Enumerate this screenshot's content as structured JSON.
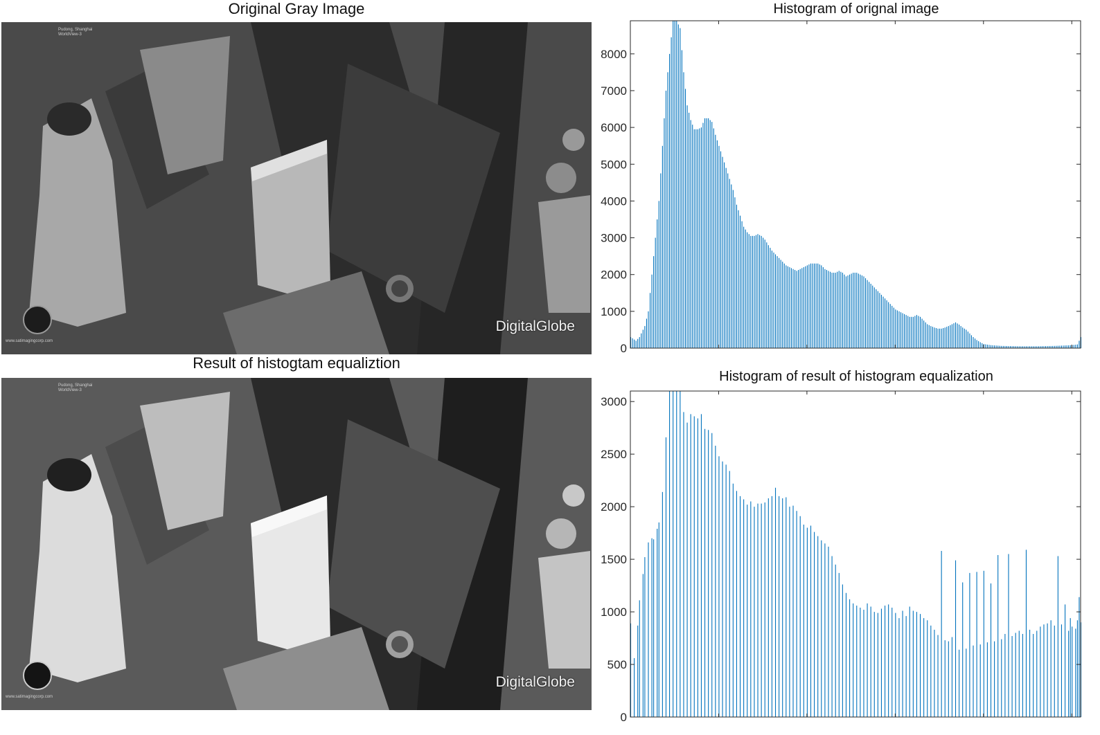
{
  "figure": {
    "panel1_title": "Original Gray Image",
    "panel2_title": "Result of histogtam equaliztion",
    "photo_watermark": "DigitalGlobe",
    "photo_footer_url": "www.satimagingcorp.com",
    "photo_header_text": [
      "Pudong, Shanghai",
      "WorldView-3"
    ]
  },
  "chart_data": [
    {
      "type": "bar",
      "title": "Histogram of orignal image",
      "xlabel": "",
      "ylabel": "",
      "xlim": [
        0,
        255
      ],
      "ylim": [
        0,
        8900
      ],
      "yticks": [
        0,
        1000,
        2000,
        3000,
        4000,
        5000,
        6000,
        7000,
        8000
      ],
      "grid": false,
      "color": "#0072BD",
      "profile": [
        [
          0,
          300
        ],
        [
          3,
          200
        ],
        [
          5,
          300
        ],
        [
          8,
          600
        ],
        [
          10,
          1000
        ],
        [
          12,
          2000
        ],
        [
          14,
          3000
        ],
        [
          16,
          4000
        ],
        [
          18,
          5500
        ],
        [
          20,
          7000
        ],
        [
          22,
          8000
        ],
        [
          24,
          8900
        ],
        [
          26,
          8900
        ],
        [
          28,
          8700
        ],
        [
          30,
          7500
        ],
        [
          32,
          6600
        ],
        [
          34,
          6200
        ],
        [
          36,
          5950
        ],
        [
          38,
          5950
        ],
        [
          40,
          6000
        ],
        [
          42,
          6250
        ],
        [
          44,
          6250
        ],
        [
          46,
          6150
        ],
        [
          48,
          5800
        ],
        [
          50,
          5500
        ],
        [
          52,
          5200
        ],
        [
          54,
          4900
        ],
        [
          56,
          4600
        ],
        [
          58,
          4300
        ],
        [
          60,
          3900
        ],
        [
          62,
          3600
        ],
        [
          64,
          3300
        ],
        [
          66,
          3150
        ],
        [
          68,
          3050
        ],
        [
          70,
          3050
        ],
        [
          72,
          3100
        ],
        [
          74,
          3050
        ],
        [
          76,
          2950
        ],
        [
          78,
          2800
        ],
        [
          80,
          2650
        ],
        [
          82,
          2550
        ],
        [
          84,
          2450
        ],
        [
          86,
          2350
        ],
        [
          88,
          2250
        ],
        [
          90,
          2200
        ],
        [
          92,
          2150
        ],
        [
          94,
          2100
        ],
        [
          96,
          2150
        ],
        [
          98,
          2200
        ],
        [
          100,
          2250
        ],
        [
          102,
          2300
        ],
        [
          104,
          2300
        ],
        [
          106,
          2300
        ],
        [
          108,
          2250
        ],
        [
          110,
          2150
        ],
        [
          112,
          2100
        ],
        [
          114,
          2050
        ],
        [
          116,
          2050
        ],
        [
          118,
          2100
        ],
        [
          120,
          2050
        ],
        [
          122,
          1950
        ],
        [
          124,
          2000
        ],
        [
          126,
          2050
        ],
        [
          128,
          2050
        ],
        [
          130,
          2000
        ],
        [
          132,
          1950
        ],
        [
          134,
          1850
        ],
        [
          136,
          1750
        ],
        [
          138,
          1650
        ],
        [
          140,
          1550
        ],
        [
          142,
          1450
        ],
        [
          144,
          1350
        ],
        [
          146,
          1250
        ],
        [
          148,
          1150
        ],
        [
          150,
          1050
        ],
        [
          152,
          1000
        ],
        [
          154,
          950
        ],
        [
          156,
          900
        ],
        [
          158,
          850
        ],
        [
          160,
          850
        ],
        [
          162,
          900
        ],
        [
          164,
          850
        ],
        [
          166,
          750
        ],
        [
          168,
          650
        ],
        [
          170,
          600
        ],
        [
          172,
          560
        ],
        [
          174,
          530
        ],
        [
          176,
          530
        ],
        [
          178,
          560
        ],
        [
          180,
          600
        ],
        [
          182,
          650
        ],
        [
          184,
          700
        ],
        [
          186,
          640
        ],
        [
          188,
          560
        ],
        [
          190,
          500
        ],
        [
          192,
          400
        ],
        [
          194,
          300
        ],
        [
          196,
          220
        ],
        [
          198,
          160
        ],
        [
          200,
          110
        ],
        [
          204,
          80
        ],
        [
          210,
          60
        ],
        [
          220,
          50
        ],
        [
          230,
          50
        ],
        [
          240,
          60
        ],
        [
          250,
          80
        ],
        [
          253,
          100
        ],
        [
          255,
          300
        ]
      ]
    },
    {
      "type": "bar",
      "title": "Histogram of result of histogram equalization",
      "xlabel": "",
      "ylabel": "",
      "xlim": [
        0,
        255
      ],
      "ylim": [
        0,
        3100
      ],
      "yticks": [
        0,
        500,
        1000,
        1500,
        2000,
        2500,
        3000
      ],
      "grid": false,
      "color": "#0072BD",
      "bars": [
        [
          0,
          890
        ],
        [
          2,
          560
        ],
        [
          4,
          870
        ],
        [
          5,
          1110
        ],
        [
          7,
          1360
        ],
        [
          8,
          1520
        ],
        [
          10,
          1660
        ],
        [
          12,
          1700
        ],
        [
          13,
          1690
        ],
        [
          15,
          1790
        ],
        [
          16,
          1850
        ],
        [
          18,
          2140
        ],
        [
          20,
          2660
        ],
        [
          22,
          3100
        ],
        [
          24,
          3100
        ],
        [
          26,
          3100
        ],
        [
          28,
          3100
        ],
        [
          30,
          2900
        ],
        [
          32,
          2800
        ],
        [
          34,
          2880
        ],
        [
          36,
          2860
        ],
        [
          38,
          2840
        ],
        [
          40,
          2880
        ],
        [
          42,
          2740
        ],
        [
          44,
          2730
        ],
        [
          46,
          2700
        ],
        [
          48,
          2580
        ],
        [
          50,
          2480
        ],
        [
          52,
          2430
        ],
        [
          54,
          2400
        ],
        [
          56,
          2340
        ],
        [
          58,
          2220
        ],
        [
          60,
          2150
        ],
        [
          62,
          2100
        ],
        [
          64,
          2070
        ],
        [
          66,
          2020
        ],
        [
          68,
          2050
        ],
        [
          70,
          2000
        ],
        [
          72,
          2030
        ],
        [
          74,
          2030
        ],
        [
          76,
          2040
        ],
        [
          78,
          2080
        ],
        [
          80,
          2100
        ],
        [
          82,
          2180
        ],
        [
          84,
          2100
        ],
        [
          86,
          2080
        ],
        [
          88,
          2090
        ],
        [
          90,
          2000
        ],
        [
          92,
          2010
        ],
        [
          94,
          1960
        ],
        [
          96,
          1910
        ],
        [
          98,
          1830
        ],
        [
          100,
          1800
        ],
        [
          102,
          1820
        ],
        [
          104,
          1760
        ],
        [
          106,
          1720
        ],
        [
          108,
          1680
        ],
        [
          110,
          1650
        ],
        [
          112,
          1620
        ],
        [
          114,
          1530
        ],
        [
          116,
          1450
        ],
        [
          118,
          1370
        ],
        [
          120,
          1260
        ],
        [
          122,
          1180
        ],
        [
          124,
          1120
        ],
        [
          126,
          1080
        ],
        [
          128,
          1060
        ],
        [
          130,
          1040
        ],
        [
          132,
          1020
        ],
        [
          134,
          1080
        ],
        [
          136,
          1050
        ],
        [
          138,
          1000
        ],
        [
          140,
          990
        ],
        [
          142,
          1030
        ],
        [
          144,
          1060
        ],
        [
          146,
          1070
        ],
        [
          148,
          1040
        ],
        [
          150,
          990
        ],
        [
          152,
          940
        ],
        [
          154,
          1010
        ],
        [
          156,
          960
        ],
        [
          158,
          1050
        ],
        [
          160,
          1010
        ],
        [
          162,
          1000
        ],
        [
          164,
          980
        ],
        [
          166,
          940
        ],
        [
          168,
          920
        ],
        [
          170,
          870
        ],
        [
          172,
          830
        ],
        [
          174,
          780
        ],
        [
          176,
          1580
        ],
        [
          178,
          730
        ],
        [
          180,
          720
        ],
        [
          182,
          760
        ],
        [
          184,
          1490
        ],
        [
          186,
          640
        ],
        [
          188,
          1280
        ],
        [
          190,
          650
        ],
        [
          192,
          1370
        ],
        [
          194,
          680
        ],
        [
          196,
          1380
        ],
        [
          198,
          690
        ],
        [
          200,
          1390
        ],
        [
          202,
          710
        ],
        [
          204,
          1270
        ],
        [
          206,
          720
        ],
        [
          208,
          1540
        ],
        [
          210,
          740
        ],
        [
          212,
          790
        ],
        [
          214,
          1550
        ],
        [
          216,
          770
        ],
        [
          218,
          800
        ],
        [
          220,
          820
        ],
        [
          222,
          790
        ],
        [
          224,
          1590
        ],
        [
          226,
          830
        ],
        [
          228,
          790
        ],
        [
          230,
          820
        ],
        [
          232,
          860
        ],
        [
          234,
          880
        ],
        [
          236,
          890
        ],
        [
          238,
          920
        ],
        [
          240,
          870
        ],
        [
          242,
          1530
        ],
        [
          244,
          880
        ],
        [
          246,
          1070
        ],
        [
          248,
          820
        ],
        [
          249,
          940
        ],
        [
          250,
          860
        ],
        [
          252,
          840
        ],
        [
          253,
          920
        ],
        [
          254,
          1140
        ],
        [
          255,
          900
        ]
      ]
    }
  ]
}
